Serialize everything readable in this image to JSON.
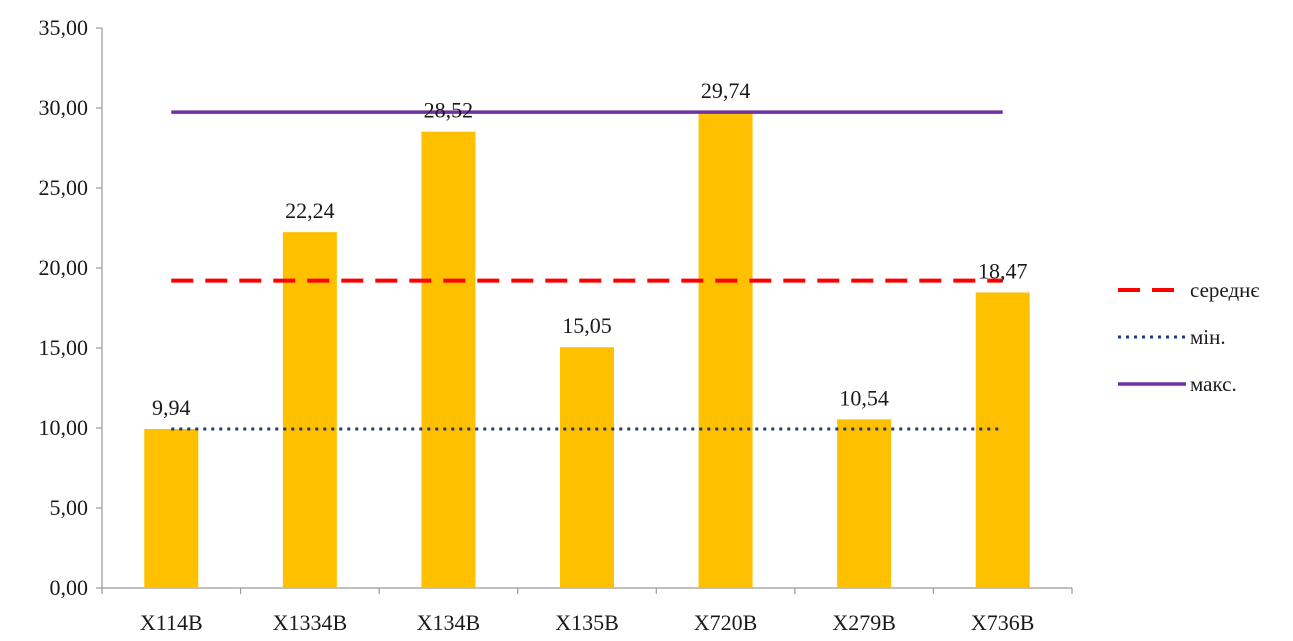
{
  "chart_data": {
    "type": "bar",
    "categories": [
      "X114B",
      "X1334B",
      "X134B",
      "X135B",
      "X720B",
      "X279B",
      "X736B"
    ],
    "values": [
      9.94,
      22.24,
      28.52,
      15.05,
      29.74,
      10.54,
      18.47
    ],
    "value_labels": [
      "9,94",
      "22,24",
      "28,52",
      "15,05",
      "29,74",
      "10,54",
      "18,47"
    ],
    "ylim": [
      0,
      35
    ],
    "yticks": [
      "0,00",
      "5,00",
      "10,00",
      "15,00",
      "20,00",
      "25,00",
      "30,00",
      "35,00"
    ],
    "ytick_values": [
      0,
      5,
      10,
      15,
      20,
      25,
      30,
      35
    ],
    "bar_color": "#FFC000",
    "reference_lines": [
      {
        "name": "середнє",
        "value": 19.21,
        "color": "#FF0000",
        "style": "dashed"
      },
      {
        "name": "мін.",
        "value": 9.94,
        "color": "#1F3B73",
        "style": "dotted"
      },
      {
        "name": "макс.",
        "value": 29.74,
        "color": "#7030A0",
        "style": "solid"
      }
    ],
    "legend_position": "right",
    "grid": false
  }
}
